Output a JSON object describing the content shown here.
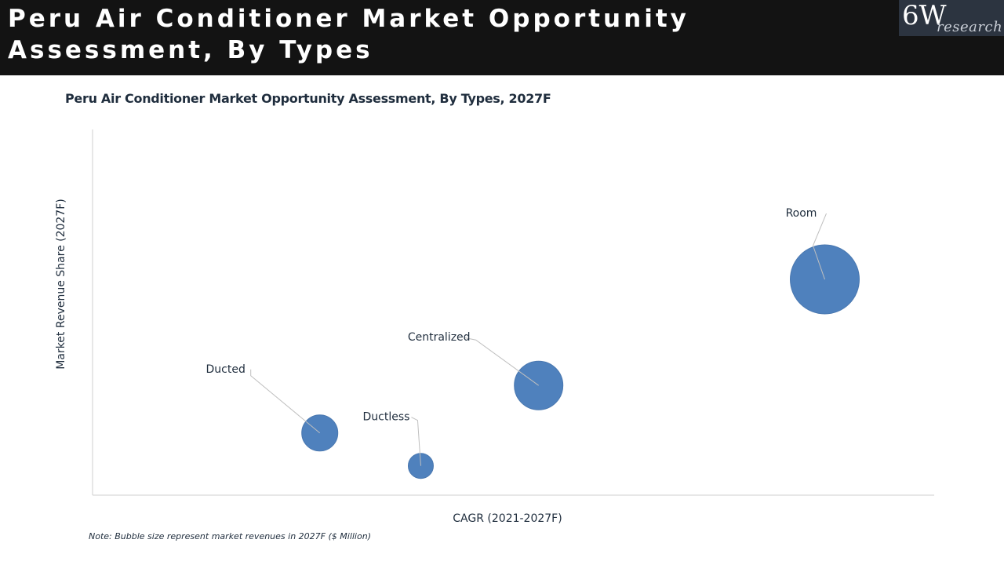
{
  "header": {
    "title": "Peru Air Conditioner Market Opportunity Assessment, By Types",
    "logo_main": "6W",
    "logo_sub": "research"
  },
  "colors": {
    "header_bg": "#131313",
    "bubble": "#4f81bd",
    "axis": "#cfcfcf",
    "text": "#1f2d3d"
  },
  "chart_data": {
    "type": "scatter",
    "title": "Peru Air Conditioner Market Opportunity Assessment, By Types, 2027F",
    "xlabel": "CAGR (2021-2027F)",
    "ylabel": "Market Revenue Share (2027F)",
    "xlim": [
      0,
      100
    ],
    "ylim": [
      0,
      100
    ],
    "grid": false,
    "note": "Note: Bubble size represent market revenues in 2027F ($ Million)",
    "points": [
      {
        "label": "Ducted",
        "x": 27,
        "y": 17,
        "size": 23
      },
      {
        "label": "Ductless",
        "x": 39,
        "y": 8,
        "size": 16
      },
      {
        "label": "Centralized",
        "x": 53,
        "y": 30,
        "size": 31
      },
      {
        "label": "Room",
        "x": 87,
        "y": 59,
        "size": 44
      }
    ]
  }
}
